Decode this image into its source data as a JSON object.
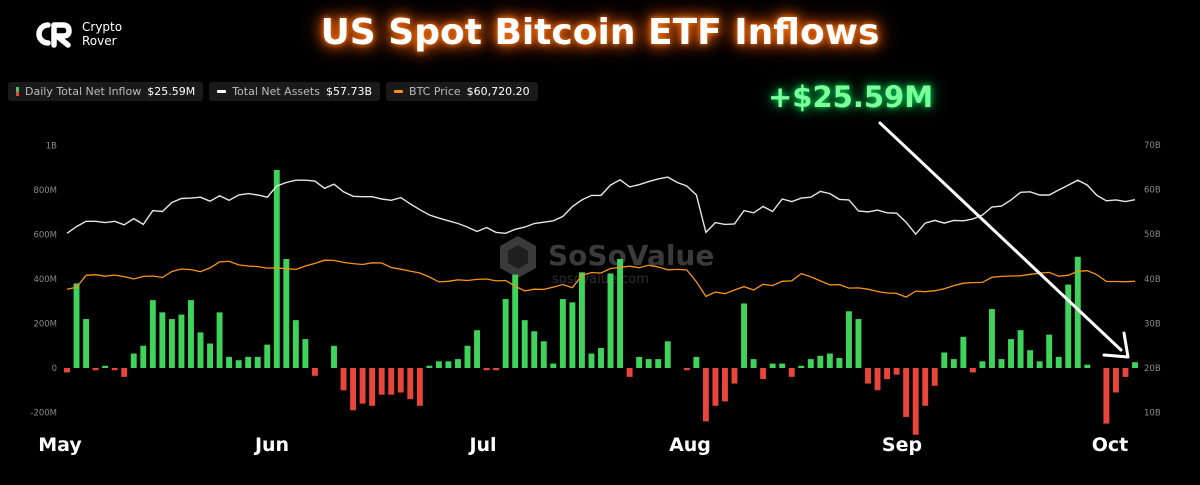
{
  "brand": {
    "line1": "Crypto",
    "line2": "Rover",
    "icon": "cr-logo-icon"
  },
  "title": "US Spot Bitcoin ETF Inflows",
  "legend": [
    {
      "label": "Daily Total Net Inflow",
      "value": "$25.59M",
      "colors": [
        "#e8453c",
        "#3fd35b"
      ]
    },
    {
      "label": "Total Net Assets",
      "value": "$57.73B",
      "colors": [
        "#ffffff"
      ]
    },
    {
      "label": "BTC Price",
      "value": "$60,720.20",
      "colors": [
        "#f7931a"
      ]
    }
  ],
  "annotation": "+$25.59M",
  "watermark": {
    "main": "SoSoValue",
    "sub": "sosovalue.com"
  },
  "colors": {
    "positive": "#3fd35b",
    "negative": "#e8453c",
    "assets": "#e6e6e6",
    "price": "#f7931a",
    "annotation": "#7dff9a",
    "arrow": "#ffffff"
  },
  "chart_data": {
    "type": "bar",
    "x_tick_labels": [
      "May",
      "Jun",
      "Jul",
      "Aug",
      "Sep",
      "Oct"
    ],
    "y_left": {
      "ticks": [
        "-200M",
        "0",
        "200M",
        "400M",
        "600M",
        "800M",
        "1B"
      ],
      "range_millions": [
        -220,
        1000
      ]
    },
    "y_right": {
      "ticks": [
        "10B",
        "20B",
        "30B",
        "40B",
        "50B",
        "60B",
        "70B"
      ],
      "range_billions": [
        7.5,
        70
      ]
    },
    "grid": false,
    "legend_position": "top-left",
    "series": [
      {
        "name": "Daily Total Net Inflow",
        "type": "bar",
        "unit": "USD millions",
        "values": [
          -20,
          380,
          220,
          -10,
          10,
          -10,
          -40,
          65,
          100,
          305,
          250,
          220,
          240,
          305,
          160,
          110,
          250,
          50,
          35,
          50,
          50,
          105,
          890,
          490,
          215,
          130,
          -35,
          0,
          100,
          -100,
          -190,
          -160,
          -170,
          -120,
          -120,
          -110,
          -140,
          -170,
          10,
          30,
          30,
          40,
          100,
          170,
          -10,
          -10,
          310,
          420,
          215,
          165,
          120,
          20,
          310,
          295,
          430,
          65,
          90,
          425,
          490,
          -40,
          50,
          40,
          40,
          120,
          0,
          -10,
          50,
          -240,
          -170,
          -150,
          -70,
          290,
          40,
          -50,
          20,
          20,
          -40,
          10,
          40,
          55,
          65,
          45,
          255,
          220,
          -70,
          -100,
          -50,
          -30,
          -220,
          -300,
          -170,
          -80,
          70,
          40,
          140,
          -20,
          30,
          265,
          40,
          130,
          170,
          80,
          30,
          150,
          50,
          375,
          500,
          15,
          0,
          -250,
          -110,
          -40,
          26
        ]
      },
      {
        "name": "Total Net Assets",
        "type": "line",
        "unit": "USD billions",
        "values": [
          50.2,
          51.7,
          52.9,
          52.9,
          52.6,
          52.9,
          52.1,
          53.5,
          52.2,
          55.3,
          55.1,
          57.1,
          58.0,
          58.1,
          58.3,
          57.4,
          58.6,
          57.6,
          58.8,
          59.1,
          58.8,
          58.3,
          60.8,
          61.6,
          62.1,
          62.1,
          61.9,
          60.3,
          61.2,
          59.5,
          58.5,
          58.4,
          58.4,
          57.9,
          57.6,
          58.2,
          56.8,
          55.5,
          54.3,
          53.6,
          53.0,
          52.4,
          51.6,
          50.6,
          51.5,
          50.4,
          50.2,
          51.1,
          51.6,
          52.4,
          52.7,
          53.0,
          54.0,
          56.2,
          57.7,
          58.7,
          58.7,
          61.0,
          62.2,
          60.6,
          61.1,
          61.8,
          62.4,
          62.8,
          61.6,
          60.8,
          58.8,
          50.4,
          52.6,
          52.2,
          52.3,
          55.3,
          54.8,
          56.2,
          55.1,
          57.9,
          57.3,
          58.1,
          58.3,
          59.6,
          59.1,
          57.8,
          57.7,
          55.2,
          55.0,
          55.4,
          54.8,
          54.7,
          52.7,
          50.0,
          52.5,
          53.1,
          52.5,
          53.1,
          53.0,
          53.4,
          54.3,
          56.1,
          56.3,
          57.7,
          59.4,
          59.5,
          58.8,
          58.8,
          59.9,
          61.0,
          62.1,
          61.0,
          58.7,
          57.5,
          57.7,
          57.3,
          57.73
        ]
      },
      {
        "name": "BTC Price",
        "type": "line",
        "unit": "USD",
        "values": [
          57000,
          57900,
          63500,
          63800,
          63100,
          63600,
          62900,
          61800,
          63000,
          63200,
          62500,
          65300,
          66500,
          66200,
          65200,
          67000,
          69800,
          70100,
          68400,
          67900,
          67600,
          66900,
          67000,
          66600,
          66300,
          67900,
          69100,
          70600,
          70500,
          69600,
          69000,
          68600,
          69400,
          69300,
          67200,
          66400,
          65500,
          64600,
          62700,
          60400,
          60700,
          61400,
          61100,
          61600,
          61800,
          60900,
          61100,
          58400,
          56200,
          57000,
          56900,
          58000,
          59200,
          57700,
          63500,
          64800,
          64600,
          66700,
          67200,
          67800,
          67100,
          68200,
          67400,
          66100,
          66300,
          66000,
          60500,
          53600,
          55700,
          54900,
          56600,
          58200,
          56600,
          59300,
          58700,
          60700,
          60900,
          64300,
          62800,
          60900,
          59000,
          59100,
          57500,
          57600,
          57000,
          55900,
          55200,
          55000,
          53300,
          56100,
          55800,
          56300,
          57200,
          58700,
          59800,
          60100,
          60200,
          62600,
          63000,
          63200,
          63300,
          64000,
          64500,
          64900,
          63100,
          63500,
          65400,
          65700,
          63800,
          60600,
          60600,
          60500,
          60720
        ]
      }
    ]
  }
}
